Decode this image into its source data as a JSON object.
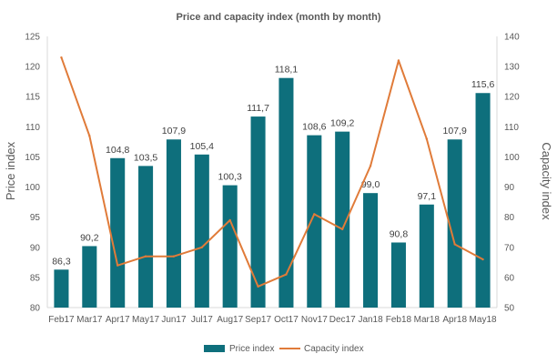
{
  "chart_data": {
    "type": "bar+line",
    "title": "Price and capacity index (month by month)",
    "categories": [
      "Feb17",
      "Mar17",
      "Apr17",
      "May17",
      "Jun17",
      "Jul17",
      "Aug17",
      "Sep17",
      "Oct17",
      "Nov17",
      "Dec17",
      "Jan18",
      "Feb18",
      "Mar18",
      "Apr18",
      "May18"
    ],
    "series": [
      {
        "name": "Price index",
        "type": "bar",
        "axis": "left",
        "color": "#0e6f7c",
        "values": [
          86.3,
          90.2,
          104.8,
          103.5,
          107.9,
          105.4,
          100.3,
          111.7,
          118.1,
          108.6,
          109.2,
          99.0,
          90.8,
          97.1,
          107.9,
          115.6
        ],
        "labels": [
          "86,3",
          "90,2",
          "104,8",
          "103,5",
          "107,9",
          "105,4",
          "100,3",
          "111,7",
          "118,1",
          "108,6",
          "109,2",
          "99,0",
          "90,8",
          "97,1",
          "107,9",
          "115,6"
        ]
      },
      {
        "name": "Capacity index",
        "type": "line",
        "axis": "right",
        "color": "#e07b39",
        "values": [
          133,
          107,
          64,
          67,
          67,
          70,
          79,
          57,
          61,
          81,
          76,
          97,
          132,
          106,
          71,
          66
        ]
      }
    ],
    "ylabel": "Price index",
    "y2label": "Capacity index",
    "ylim": [
      80,
      125
    ],
    "y2lim": [
      50,
      140
    ],
    "yticks": [
      "80",
      "85",
      "90",
      "95",
      "100",
      "105",
      "110",
      "115",
      "120",
      "125"
    ],
    "y2ticks": [
      "50",
      "60",
      "70",
      "80",
      "90",
      "100",
      "110",
      "120",
      "130",
      "140"
    ],
    "legend_position": "bottom-center",
    "grid": false
  }
}
